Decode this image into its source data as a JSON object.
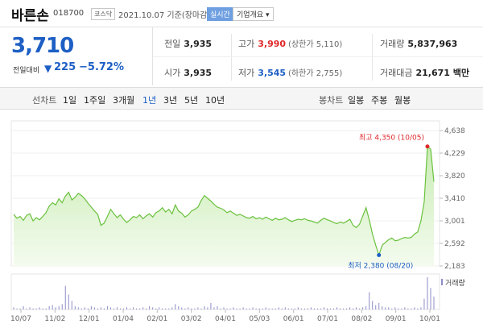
{
  "header": {
    "stock_name": "바른손",
    "stock_code": "018700",
    "market": "코스닥",
    "date_text": "2021.10.07 기준(장마감)",
    "realtime_label": "실시간",
    "company_info_label": "기업개요 ▾"
  },
  "price": {
    "current": "3,710",
    "compare_label": "전일대비",
    "change": "225",
    "change_pct": "−5.72%",
    "direction_icon": "▼",
    "color_down": "#1d5fc4",
    "color_up": "#e0272a"
  },
  "stats": {
    "prev_close_label": "전일",
    "prev_close": "3,935",
    "high_label": "고가",
    "high": "3,990",
    "upper_limit": "(상한가 5,110)",
    "volume_label": "거래량",
    "volume": "5,837,963",
    "open_label": "시가",
    "open": "3,935",
    "low_label": "저가",
    "low": "3,545",
    "lower_limit": "(하한가 2,755)",
    "amount_label": "거래대금",
    "amount": "21,671 백만"
  },
  "tabs": {
    "line_chart_label": "선차트",
    "periods": [
      "1일",
      "1주일",
      "3개월",
      "1년",
      "3년",
      "5년",
      "10년"
    ],
    "selected_period": "1년",
    "candle_chart_label": "봉차트",
    "candle_periods": [
      "일봉",
      "주봉",
      "월봉"
    ]
  },
  "chart_data": {
    "type": "area",
    "y_ticks": [
      "4,638",
      "4,229",
      "3,820",
      "3,410",
      "3,001",
      "2,592",
      "2,183"
    ],
    "ylim": [
      2183,
      4638
    ],
    "x_ticks": [
      "10/07",
      "11/02",
      "12/01",
      "01/04",
      "02/01",
      "03/02",
      "04/01",
      "05/03",
      "06/01",
      "07/01",
      "08/02",
      "09/01",
      "10/01"
    ],
    "annotation_high": "최고 4,350 (10/05)",
    "annotation_low": "최저 2,380 (08/20)",
    "volume_legend": "거래량",
    "series": [
      {
        "values": [
          3120,
          3050,
          3080,
          3010,
          3100,
          3130,
          3000,
          3060,
          3020,
          3080,
          3150,
          3270,
          3330,
          3290,
          3400,
          3330,
          3450,
          3520,
          3380,
          3430,
          3500,
          3460,
          3400,
          3320,
          3250,
          3180,
          3120,
          2920,
          2960,
          3080,
          3210,
          3130,
          3060,
          3110,
          3030,
          2970,
          3020,
          3080,
          3060,
          3110,
          3040,
          3090,
          3130,
          3070,
          3150,
          3180,
          3240,
          3160,
          3210,
          3130,
          3290,
          3180,
          3140,
          3070,
          3110,
          3180,
          3210,
          3250,
          3370,
          3460,
          3410,
          3360,
          3300,
          3250,
          3230,
          3200,
          3150,
          3180,
          3140,
          3100,
          3120,
          3090,
          3060,
          3050,
          3080,
          3040,
          3060,
          3030,
          3070,
          3040,
          3010,
          3050,
          3020,
          3030,
          3060,
          3020,
          2990,
          3010,
          3030,
          3020,
          3040,
          3010,
          3000,
          2980,
          2960,
          3010,
          3050,
          3020,
          3000,
          2970,
          2950,
          2980,
          2960,
          2990,
          3030,
          2920,
          2880,
          2940,
          3090,
          3240,
          3020,
          2760,
          2560,
          2380,
          2560,
          2610,
          2660,
          2690,
          2640,
          2650,
          2680,
          2700,
          2690,
          2700,
          2760,
          2800,
          3000,
          3350,
          4350,
          4300,
          3710
        ]
      }
    ],
    "volume_bars": [
      2,
      1,
      1,
      3,
      1,
      2,
      1,
      1,
      2,
      1,
      1,
      3,
      4,
      2,
      3,
      5,
      22,
      14,
      8,
      3,
      2,
      1,
      2,
      1,
      3,
      2,
      1,
      2,
      1,
      3,
      2,
      1,
      2,
      1,
      1,
      2,
      1,
      2,
      1,
      1,
      2,
      1,
      3,
      2,
      1,
      2,
      1,
      1,
      1,
      2,
      5,
      3,
      2,
      1,
      2,
      1,
      1,
      2,
      1,
      3,
      2,
      6,
      2,
      3,
      1,
      2,
      1,
      1,
      2,
      1,
      1,
      2,
      1,
      1,
      2,
      1,
      1,
      1,
      2,
      1,
      1,
      1,
      2,
      1,
      2,
      1,
      1,
      1,
      2,
      1,
      1,
      1,
      2,
      1,
      1,
      1,
      2,
      1,
      1,
      1,
      2,
      1,
      1,
      1,
      2,
      1,
      2,
      1,
      2,
      3,
      16,
      8,
      4,
      6,
      3,
      2,
      2,
      1,
      2,
      1,
      1,
      2,
      1,
      1,
      2,
      1,
      2,
      10,
      30,
      20,
      12
    ],
    "line_color": "#6ac13e",
    "fill_color_top": "#c9ecb3",
    "fill_color_bottom": "#f4fbef",
    "volume_color": "#8c8cc9"
  }
}
